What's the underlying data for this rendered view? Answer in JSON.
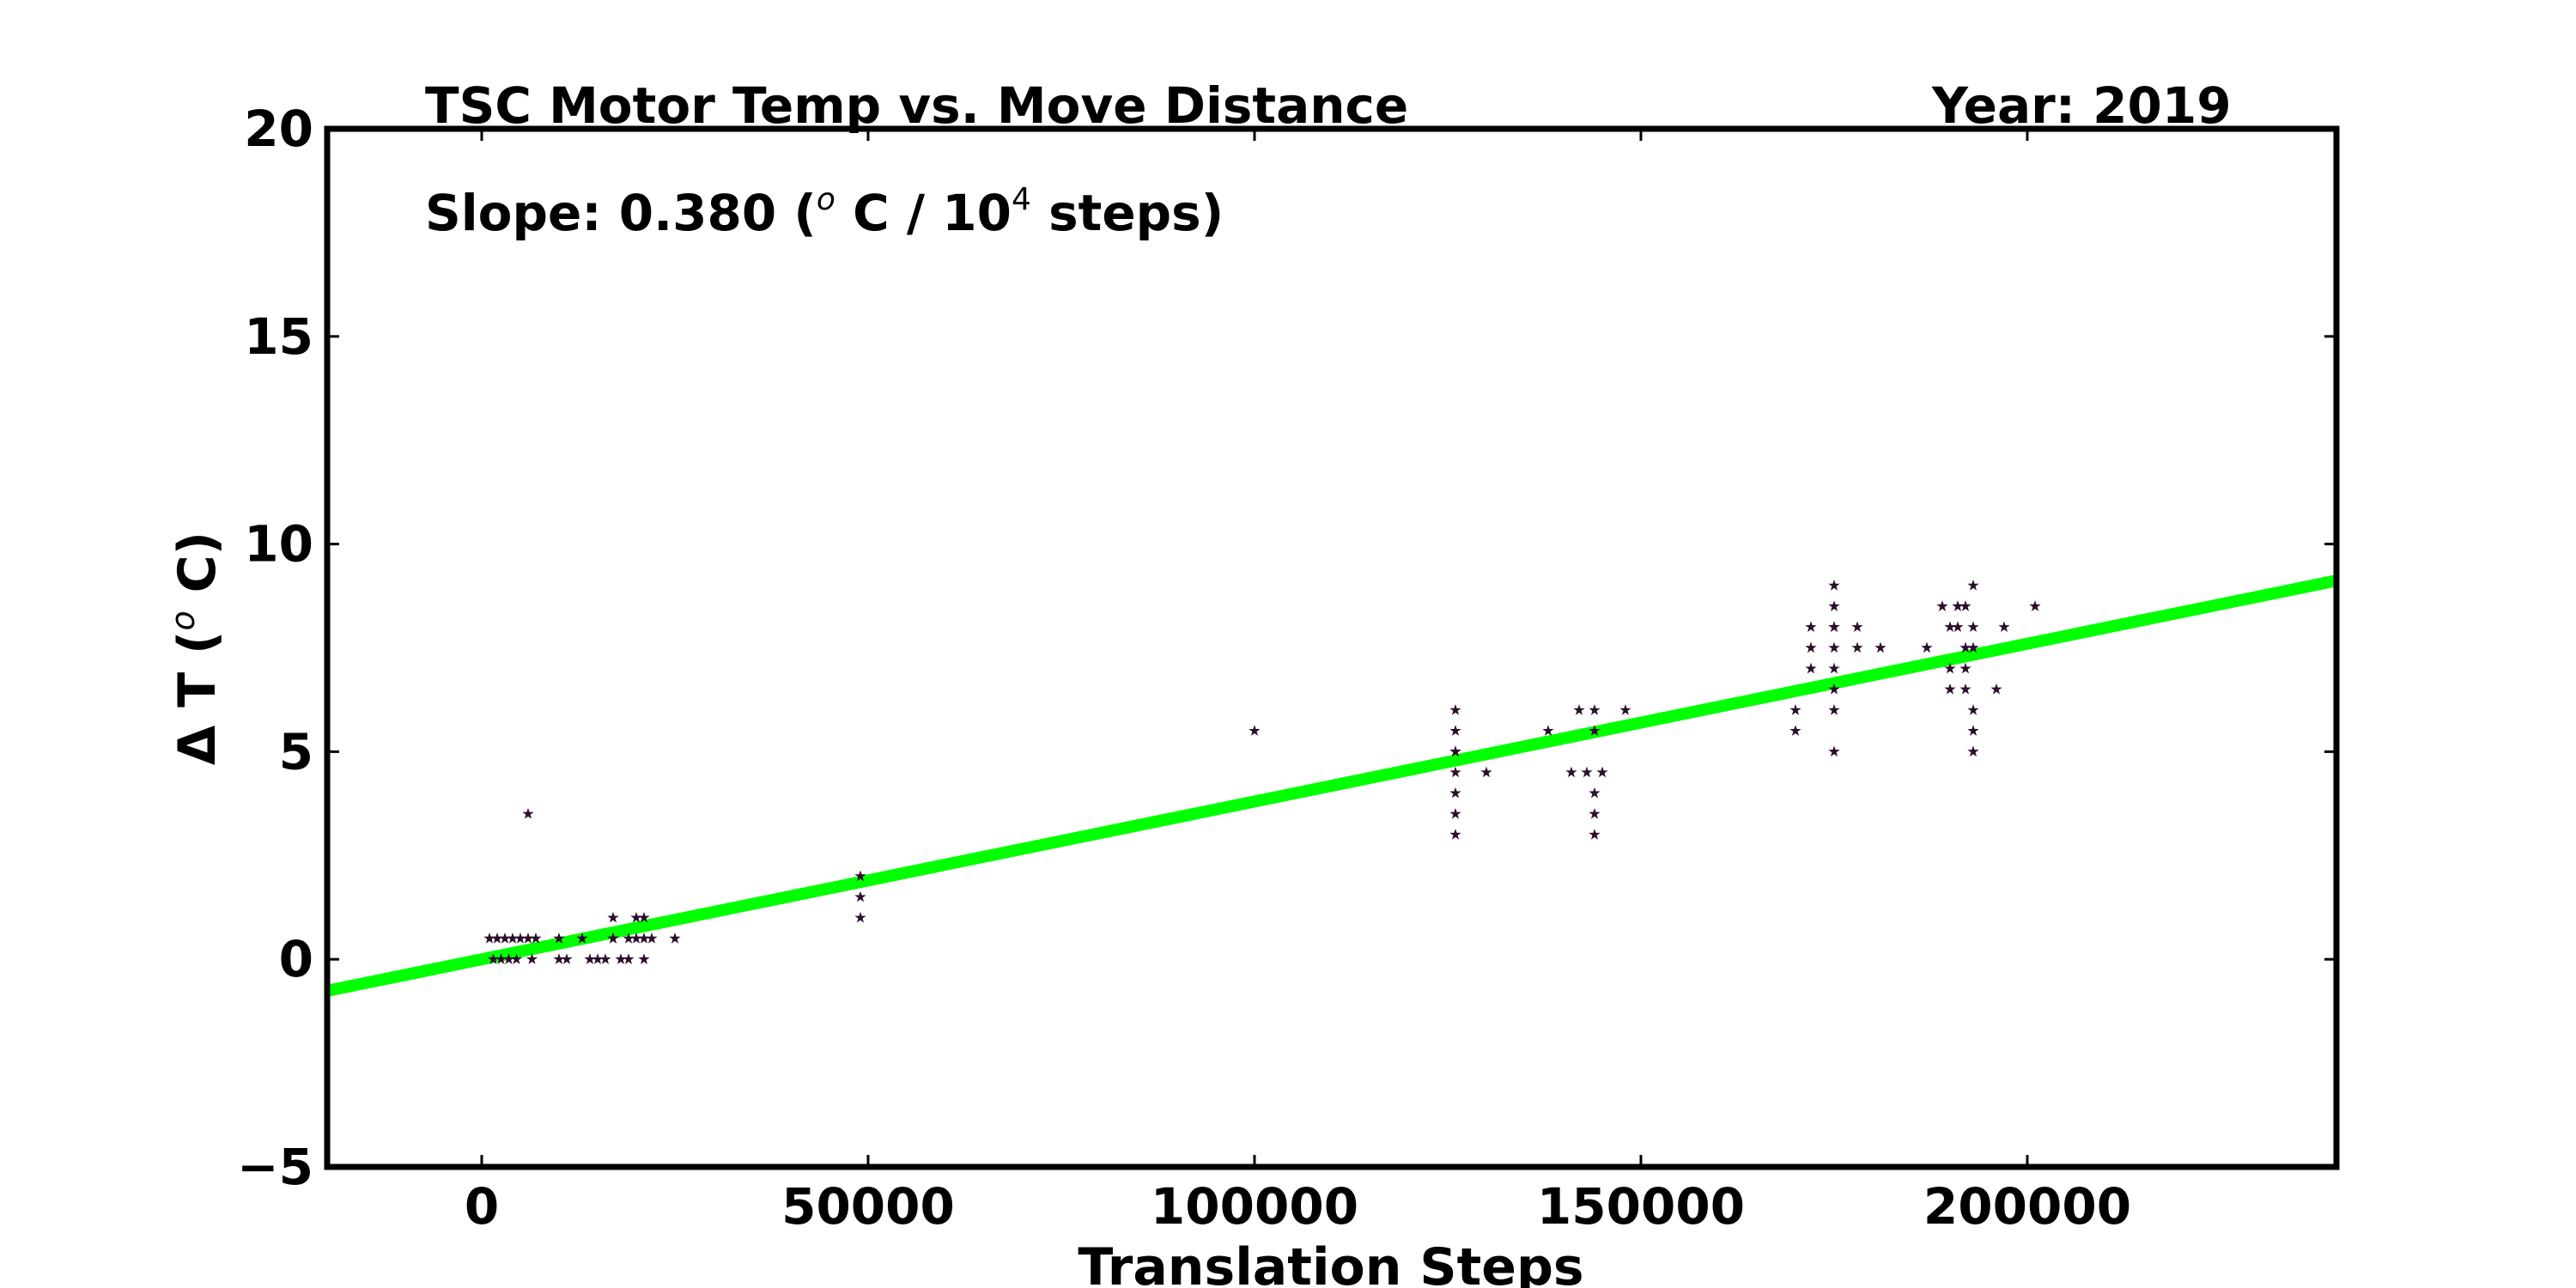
{
  "chart_data": {
    "type": "scatter",
    "title": "TSC Motor Temp vs. Move Distance",
    "year_label": "Year: 2019",
    "annotation": {
      "prefix": "Slope:  0.380 (",
      "sup1": "o",
      "mid": " C / 10",
      "sup2": "4",
      "suffix": "  steps)"
    },
    "xlabel": "Translation Steps",
    "ylabel": {
      "prefix": "Δ T (",
      "sup": "o",
      "suffix": " C)"
    },
    "xlim": [
      -20000,
      240000
    ],
    "ylim": [
      -5,
      20
    ],
    "xticks": [
      0,
      50000,
      100000,
      150000,
      200000
    ],
    "xtick_labels": [
      "0",
      "50000",
      "100000",
      "150000",
      "200000"
    ],
    "yticks": [
      -5,
      0,
      5,
      10,
      15,
      20
    ],
    "ytick_labels": [
      "−5",
      "0",
      "5",
      "10",
      "15",
      "20"
    ],
    "grid": false,
    "colors": {
      "points": "#2b0f2b",
      "fit_line": "#00ff00",
      "axes": "#000000"
    },
    "fit": {
      "slope_per_step": 3.8e-05,
      "intercept": 0.0
    },
    "series": [
      {
        "marker": "star",
        "x": [
          1000,
          2000,
          3000,
          4000,
          5000,
          6000,
          7000,
          1500,
          2500,
          3500,
          4500,
          6500,
          6000,
          10000,
          11000,
          14000,
          15000,
          16000,
          17000,
          18000,
          19000,
          10000,
          13000,
          17000,
          19000,
          20000,
          21000,
          22000,
          25000,
          17000,
          20000,
          21000,
          21000,
          49000,
          49000,
          49000,
          100000,
          126000,
          126000,
          126000,
          126000,
          126000,
          126000,
          126000,
          126000,
          130000,
          138000,
          141000,
          143000,
          145000,
          142000,
          144000,
          144000,
          144000,
          144000,
          144000,
          148000,
          170000,
          170000,
          172000,
          172000,
          172000,
          175000,
          175000,
          175000,
          175000,
          175000,
          175000,
          175000,
          175000,
          175000,
          178000,
          178000,
          181000,
          187000,
          189000,
          190000,
          190000,
          190000,
          191000,
          191000,
          192000,
          192000,
          192000,
          192000,
          193000,
          193000,
          193000,
          193000,
          193000,
          193000,
          197000,
          196000,
          201000
        ],
        "y": [
          0.5,
          0.5,
          0.5,
          0.5,
          0.5,
          0.5,
          0.5,
          0,
          0,
          0,
          0,
          0,
          3.5,
          0.5,
          0,
          0,
          0,
          0,
          0.5,
          0,
          0,
          0,
          0.5,
          1,
          0.5,
          1,
          0.5,
          0.5,
          0.5,
          0.5,
          0.5,
          1,
          0,
          2,
          1.5,
          1,
          5.5,
          6,
          5.5,
          5,
          4.5,
          4,
          3.5,
          3,
          5,
          4.5,
          5.5,
          4.5,
          4.5,
          4.5,
          6,
          6,
          5.5,
          4,
          3.5,
          3,
          6,
          6,
          5.5,
          8,
          7.5,
          7,
          9,
          8.5,
          8,
          8,
          7.5,
          7,
          6.5,
          6,
          5,
          8,
          7.5,
          7.5,
          7.5,
          8.5,
          8,
          7,
          6.5,
          8.5,
          8,
          8.5,
          7.5,
          7,
          6.5,
          9,
          8,
          7.5,
          6,
          5.5,
          5,
          8,
          6.5,
          8.5
        ]
      }
    ]
  }
}
